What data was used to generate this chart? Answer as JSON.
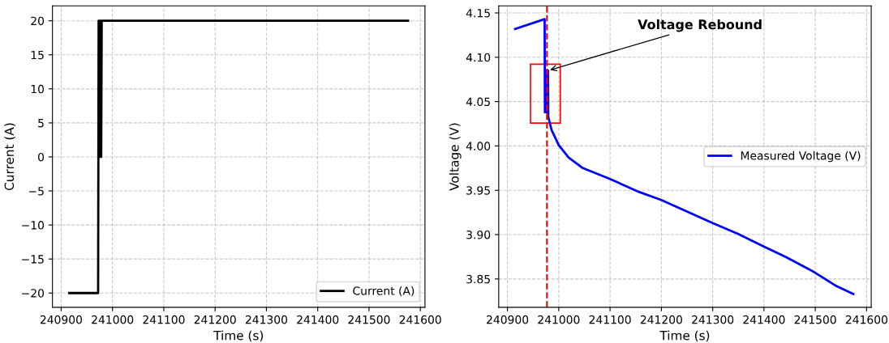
{
  "chart_data": [
    {
      "type": "line",
      "xlabel": "Time (s)",
      "ylabel": "Current (A)",
      "xlim": [
        240883,
        241609
      ],
      "ylim": [
        -22.1,
        22.2
      ],
      "xticks": [
        240900,
        241000,
        241100,
        241200,
        241300,
        241400,
        241500,
        241600
      ],
      "yticks": [
        {
          "value": -20,
          "label": "−20"
        },
        {
          "value": -15,
          "label": "−15"
        },
        {
          "value": -10,
          "label": "−10"
        },
        {
          "value": -5,
          "label": "−5"
        },
        0,
        5,
        10,
        15,
        20
      ],
      "grid": true,
      "legend": "bottom right",
      "line_style": "solid",
      "series": [
        {
          "name": "Current (A)",
          "color": "#000000",
          "x": [
            240916,
            240972,
            240973,
            240974,
            240975,
            240976,
            240977,
            240978,
            240979,
            241576
          ],
          "values": [
            -20,
            -20,
            20,
            0,
            20,
            0,
            20,
            0,
            20,
            20
          ]
        }
      ]
    },
    {
      "type": "line",
      "xlabel": "Time (s)",
      "ylabel": "Voltage (V)",
      "xlim": [
        240883,
        241609
      ],
      "ylim": [
        3.818,
        4.158
      ],
      "xticks": [
        240900,
        241000,
        241100,
        241200,
        241300,
        241400,
        241500,
        241600
      ],
      "yticks": [
        3.85,
        {
          "value": 3.9,
          "label": "3.90"
        },
        3.95,
        {
          "value": 4.0,
          "label": "4.00"
        },
        4.05,
        {
          "value": 4.1,
          "label": "4.10"
        },
        4.15
      ],
      "grid": true,
      "legend": "right",
      "line_style": "solid",
      "series": [
        {
          "name": "Measured Voltage (V)",
          "color": "#0000ff",
          "x": [
            240915,
            240972.5,
            240973,
            240975,
            240976,
            240977,
            240978,
            240979,
            240979.5,
            240986,
            241000,
            241019,
            241047,
            241099,
            241157,
            241200,
            241250,
            241300,
            241349,
            241398,
            241442,
            241497,
            241541,
            241574
          ],
          "values": [
            4.132,
            4.143,
            4.038,
            4.085,
            4.038,
            4.085,
            4.038,
            4.085,
            4.033,
            4.018,
            4.001,
            3.987,
            3.975,
            3.963,
            3.948,
            3.939,
            3.926,
            3.913,
            3.901,
            3.887,
            3.875,
            3.858,
            3.842,
            3.833
          ]
        }
      ],
      "ref_lines": [
        {
          "axis": "x",
          "value": 240977,
          "color": "#ff0000",
          "line_style": "dashed"
        }
      ],
      "annotations": [
        {
          "text": "Voltage Rebound",
          "x": 240979,
          "y": 4.085
        }
      ]
    }
  ]
}
